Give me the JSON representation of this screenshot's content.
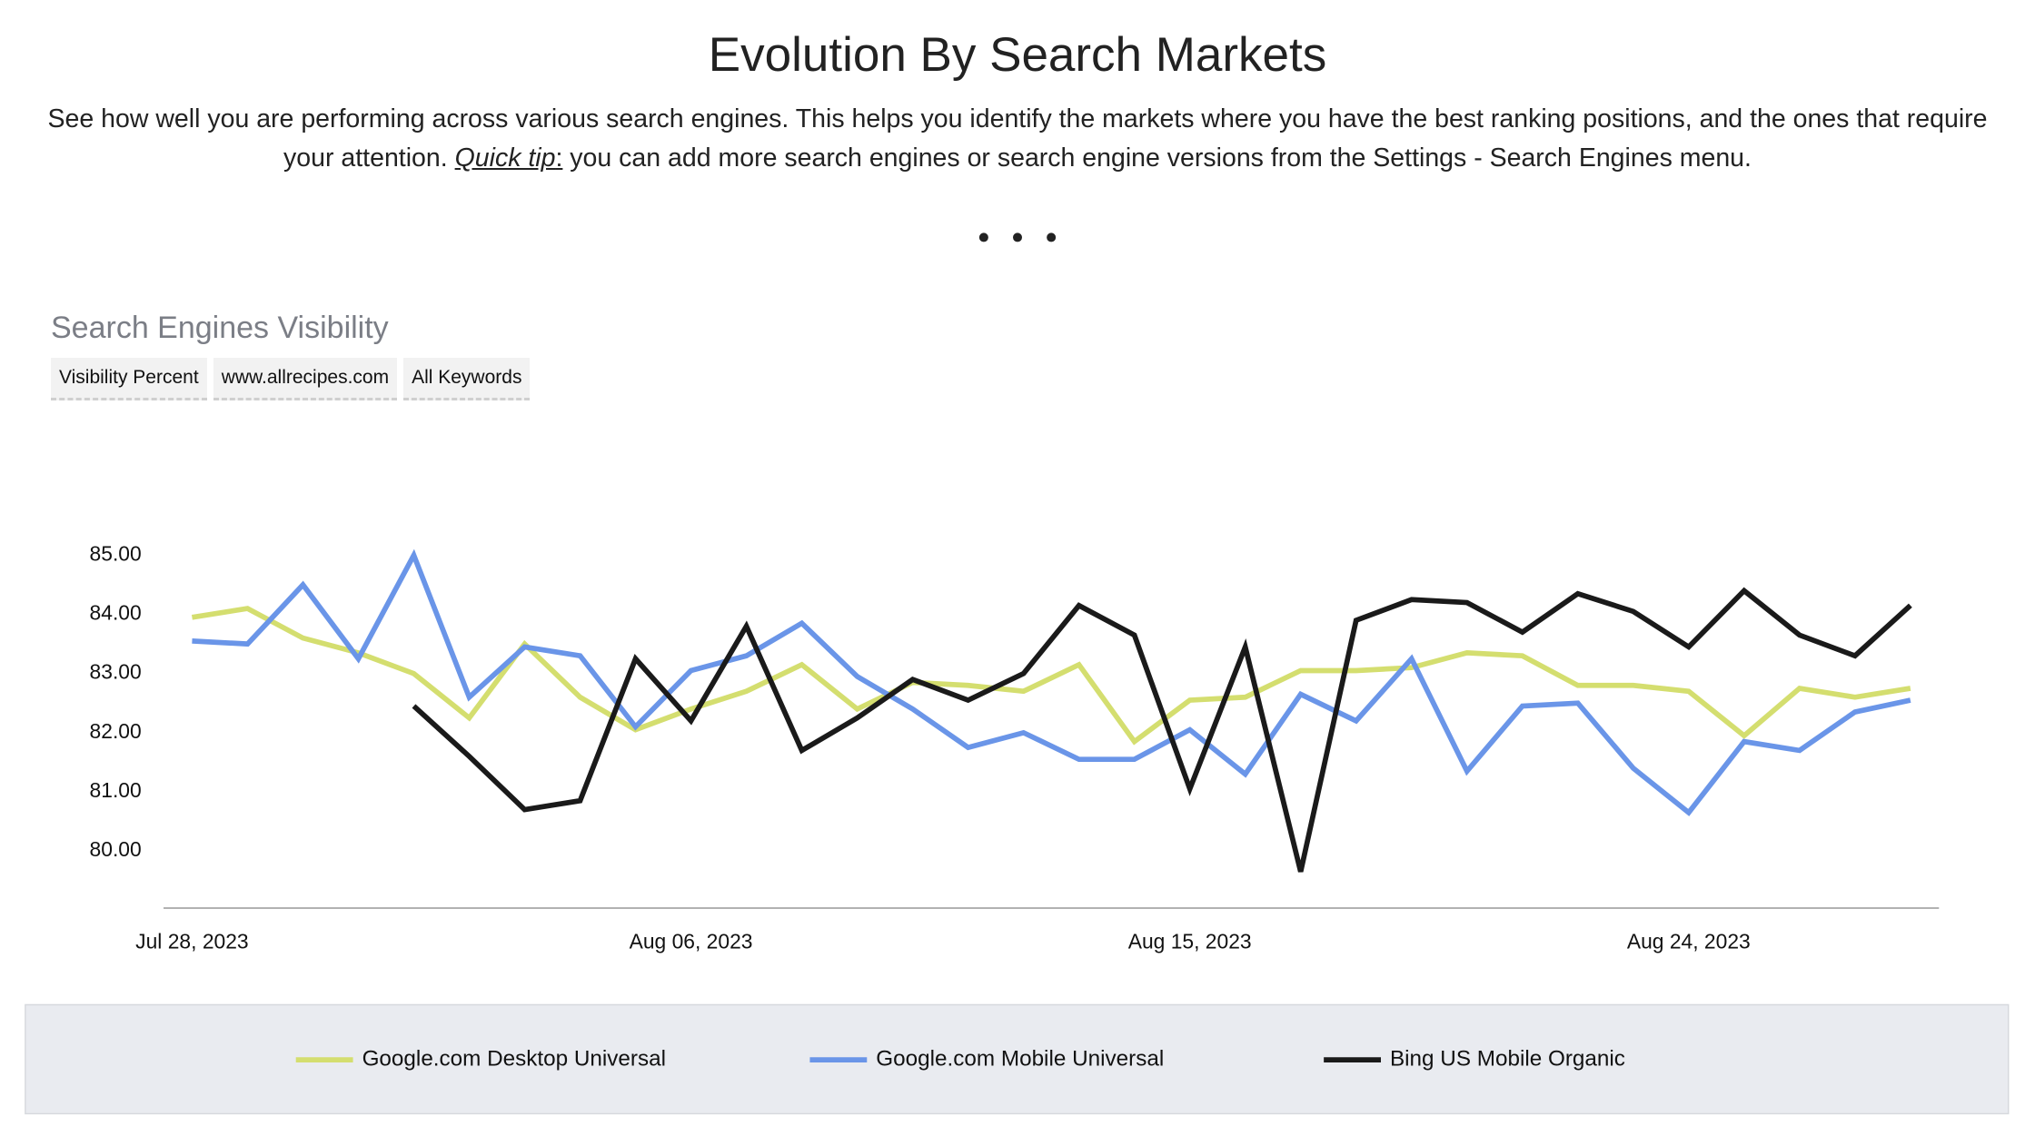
{
  "header": {
    "title": "Evolution By Search Markets",
    "description_before": "See how well you are performing across various search engines. This helps you identify the markets where you have the best ranking positions, and the ones that require your attention. ",
    "tip": "Quick tip",
    "tip_colon": ":",
    "description_after": " you can add more search engines or search engine versions from the Settings - Search Engines menu."
  },
  "chart_title": "Search Engines Visibility",
  "filters": [
    "Visibility Percent",
    "www.allrecipes.com",
    "All Keywords"
  ],
  "chart_data": {
    "type": "line",
    "x": [
      "2023-07-28",
      "2023-07-29",
      "2023-07-30",
      "2023-07-31",
      "2023-08-01",
      "2023-08-02",
      "2023-08-03",
      "2023-08-04",
      "2023-08-05",
      "2023-08-06",
      "2023-08-07",
      "2023-08-08",
      "2023-08-09",
      "2023-08-10",
      "2023-08-11",
      "2023-08-12",
      "2023-08-13",
      "2023-08-14",
      "2023-08-15",
      "2023-08-16",
      "2023-08-17",
      "2023-08-18",
      "2023-08-19",
      "2023-08-20",
      "2023-08-21",
      "2023-08-22",
      "2023-08-23",
      "2023-08-24",
      "2023-08-25",
      "2023-08-26",
      "2023-08-27",
      "2023-08-28"
    ],
    "xlim": [
      "2023-07-28",
      "2023-08-28"
    ],
    "xticks": [
      {
        "value": "2023-07-28",
        "label": "Jul 28, 2023"
      },
      {
        "value": "2023-08-06",
        "label": "Aug 06, 2023"
      },
      {
        "value": "2023-08-15",
        "label": "Aug 15, 2023"
      },
      {
        "value": "2023-08-24",
        "label": "Aug 24, 2023"
      }
    ],
    "ylim": [
      79,
      86
    ],
    "yticks": [
      {
        "value": 80,
        "label": "80.00"
      },
      {
        "value": 81,
        "label": "81.00"
      },
      {
        "value": 82,
        "label": "82.00"
      },
      {
        "value": 83,
        "label": "83.00"
      },
      {
        "value": 84,
        "label": "84.00"
      },
      {
        "value": 85,
        "label": "85.00"
      }
    ],
    "grid": false,
    "legend": "bottom",
    "series": [
      {
        "name": "Google.com Desktop Universal",
        "color": "#d4de6f",
        "values": [
          83.95,
          84.1,
          83.6,
          83.35,
          83.0,
          82.25,
          83.5,
          82.6,
          82.05,
          82.4,
          82.7,
          83.15,
          82.4,
          82.85,
          82.8,
          82.7,
          83.15,
          81.85,
          82.55,
          82.6,
          83.05,
          83.05,
          83.1,
          83.35,
          83.3,
          82.8,
          82.8,
          82.7,
          81.95,
          82.75,
          82.6,
          82.75
        ]
      },
      {
        "name": "Google.com Mobile Universal",
        "color": "#6a95e8",
        "values": [
          83.55,
          83.5,
          84.5,
          83.25,
          85.0,
          82.6,
          83.45,
          83.3,
          82.1,
          83.05,
          83.3,
          83.85,
          82.95,
          82.4,
          81.75,
          82.0,
          81.55,
          81.55,
          82.05,
          81.3,
          82.65,
          82.2,
          83.25,
          81.35,
          82.45,
          82.5,
          81.4,
          80.65,
          81.85,
          81.7,
          82.35,
          82.55
        ]
      },
      {
        "name": "Bing US Mobile Organic",
        "color": "#1a1a1a",
        "values": [
          null,
          null,
          null,
          null,
          82.45,
          81.6,
          80.7,
          80.85,
          83.25,
          82.2,
          83.8,
          81.7,
          82.25,
          82.9,
          82.55,
          83.0,
          84.15,
          83.65,
          81.05,
          83.45,
          79.65,
          83.9,
          84.25,
          84.2,
          83.7,
          84.35,
          84.05,
          83.45,
          84.4,
          83.65,
          83.3,
          84.15
        ]
      }
    ]
  }
}
